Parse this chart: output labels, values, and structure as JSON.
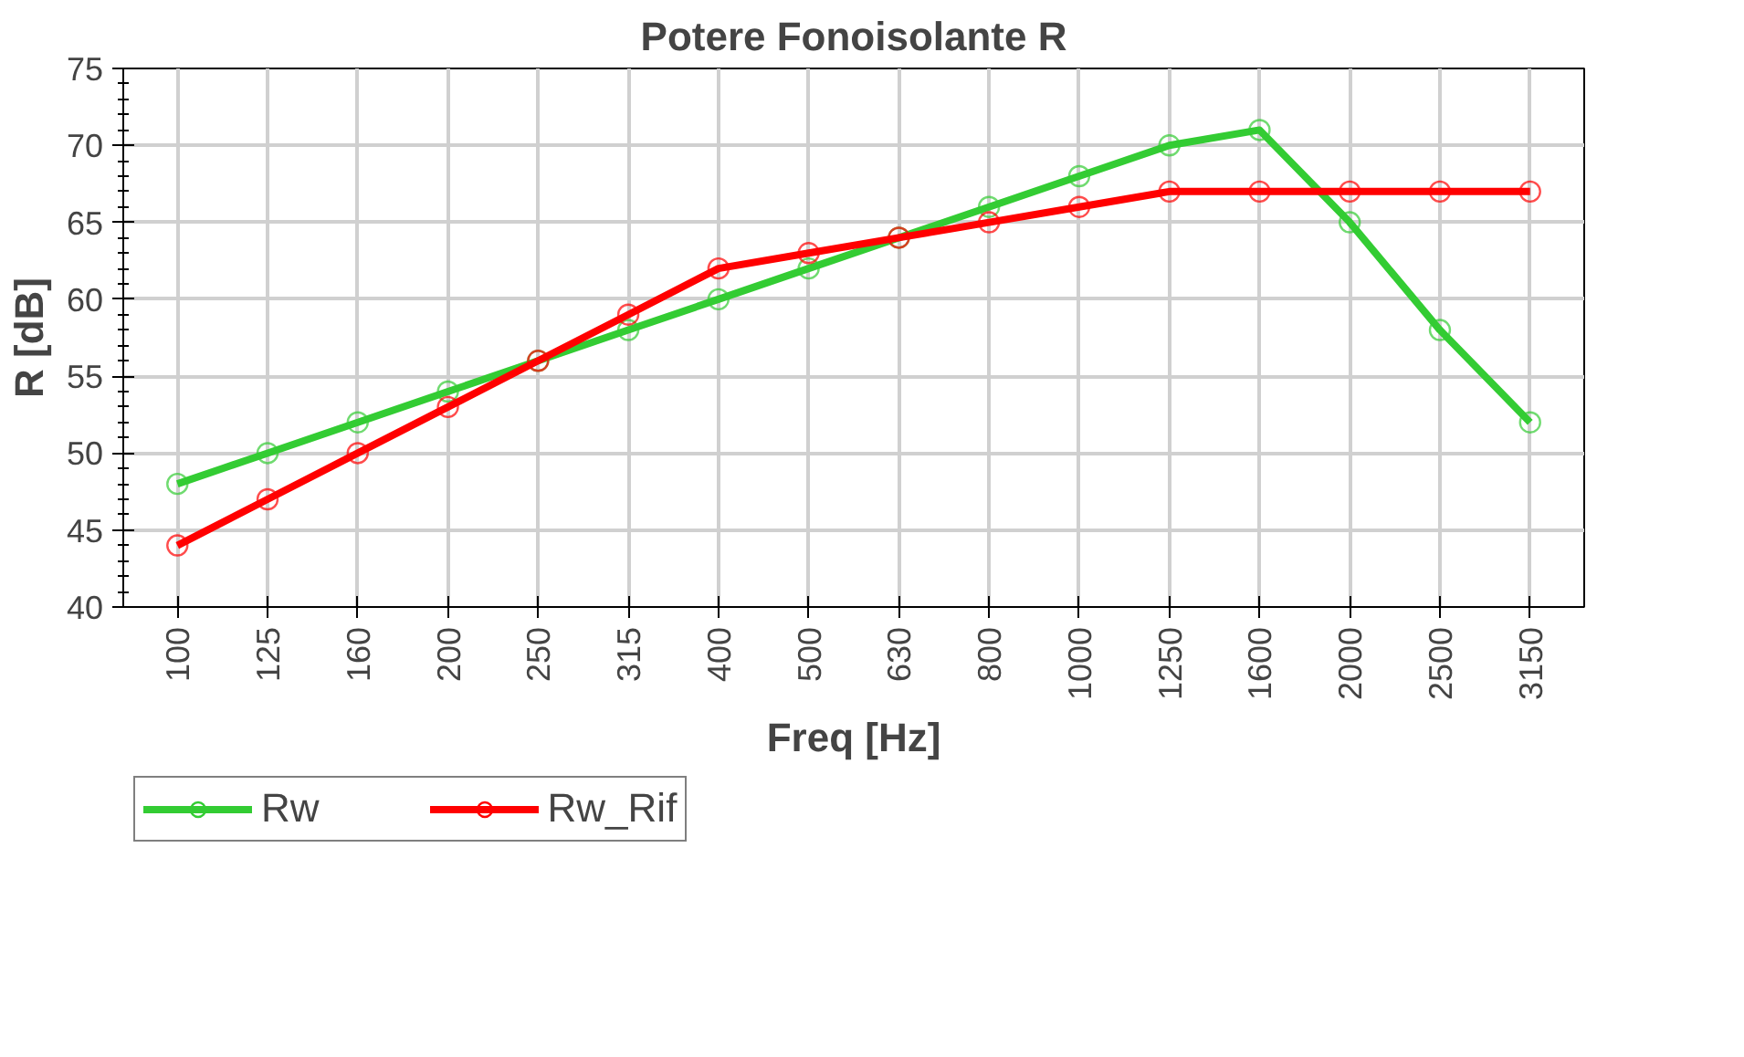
{
  "chart_data": {
    "type": "line",
    "title": "Potere Fonoisolante R",
    "xlabel": "Freq [Hz]",
    "ylabel": "R [dB]",
    "categories": [
      "100",
      "125",
      "160",
      "200",
      "250",
      "315",
      "400",
      "500",
      "630",
      "800",
      "1000",
      "1250",
      "1600",
      "2000",
      "2500",
      "3150"
    ],
    "series": [
      {
        "name": "Rw",
        "color": "#33cc33",
        "values": [
          48,
          50,
          52,
          54,
          56,
          58,
          60,
          62,
          64,
          66,
          68,
          70,
          71,
          65,
          58,
          52
        ]
      },
      {
        "name": "Rw_Rif",
        "color": "#ff0000",
        "values": [
          44,
          47,
          50,
          53,
          56,
          59,
          62,
          63,
          64,
          65,
          66,
          67,
          67,
          67,
          67,
          67
        ]
      }
    ],
    "ylim": [
      40,
      75
    ],
    "yticks": [
      40,
      45,
      50,
      55,
      60,
      65,
      70,
      75
    ],
    "grid": true,
    "legend": "bottom",
    "marker": "circle",
    "line_style": "solid"
  }
}
